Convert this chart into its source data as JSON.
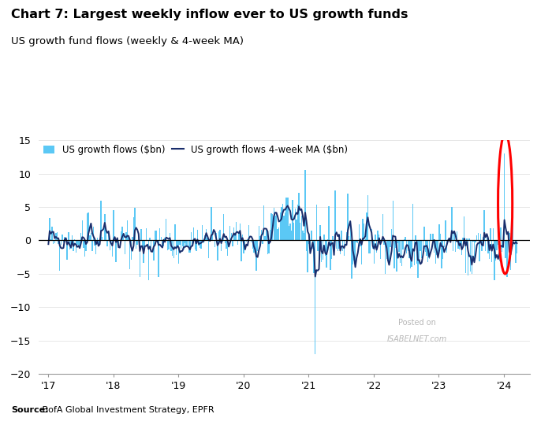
{
  "title": "Chart 7: Largest weekly inflow ever to US growth funds",
  "subtitle": "US growth fund flows (weekly & 4-week MA)",
  "source_bold": "Source:",
  "source_rest": " BofA Global Investment Strategy, EPFR",
  "bar_color": "#5bc8f5",
  "ma_color": "#1a2e6c",
  "zero_line_color": "#000000",
  "ylim": [
    -20,
    15
  ],
  "yticks": [
    -20,
    -15,
    -10,
    -5,
    0,
    5,
    10,
    15
  ],
  "legend_bar_label": "US growth flows ($bn)",
  "legend_ma_label": "US growth flows 4-week MA ($bn)",
  "ellipse_color": "red",
  "watermark_line1": "Posted on",
  "watermark_line2": "ISABELNET.com",
  "n_weeks": 375,
  "xlim_left": 2016.85,
  "xlim_right": 2024.4,
  "year_ticks": [
    2017,
    2018,
    2019,
    2020,
    2021,
    2022,
    2023,
    2024
  ],
  "year_labels": [
    "'17",
    "'18",
    "'19",
    "'20",
    "'21",
    "'22",
    "'23",
    "'24"
  ]
}
